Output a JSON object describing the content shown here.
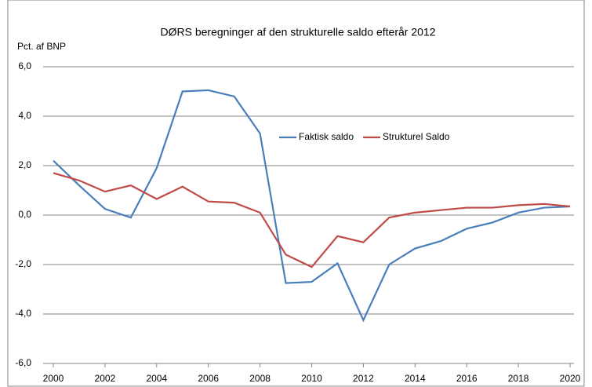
{
  "chart_data": {
    "type": "line",
    "title": "DØRS beregninger af den strukturelle saldo efterår 2012",
    "y_label": "Pct. af BNP",
    "x": [
      2000,
      2001,
      2002,
      2003,
      2004,
      2005,
      2006,
      2007,
      2008,
      2009,
      2010,
      2011,
      2012,
      2013,
      2014,
      2015,
      2016,
      2017,
      2018,
      2019,
      2020
    ],
    "series": [
      {
        "name": "Faktisk saldo",
        "color": "#4a7ebb",
        "values": [
          2.2,
          1.2,
          0.25,
          -0.1,
          1.9,
          5.0,
          5.05,
          4.8,
          3.3,
          -2.75,
          -2.7,
          -1.95,
          -4.25,
          -2.0,
          -1.35,
          -1.05,
          -0.55,
          -0.3,
          0.1,
          0.3,
          0.35
        ]
      },
      {
        "name": "Strukturel Saldo",
        "color": "#be4b48",
        "values": [
          1.7,
          1.4,
          0.95,
          1.2,
          0.65,
          1.15,
          0.55,
          0.5,
          0.1,
          -1.6,
          -2.1,
          -0.85,
          -1.1,
          -0.1,
          0.1,
          0.2,
          0.3,
          0.3,
          0.4,
          0.45,
          0.35
        ]
      }
    ],
    "xlim": [
      2000,
      2020
    ],
    "xticks": [
      2000,
      2002,
      2004,
      2006,
      2008,
      2010,
      2012,
      2014,
      2016,
      2018,
      2020
    ],
    "ylim": [
      -6,
      6
    ],
    "yticks": [
      {
        "value": -6,
        "label": "-6,0"
      },
      {
        "value": -4,
        "label": "-4,0"
      },
      {
        "value": -2,
        "label": "-2,0"
      },
      {
        "value": 0,
        "label": "0,0"
      },
      {
        "value": 2,
        "label": "2,0"
      },
      {
        "value": 4,
        "label": "4,0"
      },
      {
        "value": 6,
        "label": "6,0"
      }
    ],
    "grid": true
  }
}
